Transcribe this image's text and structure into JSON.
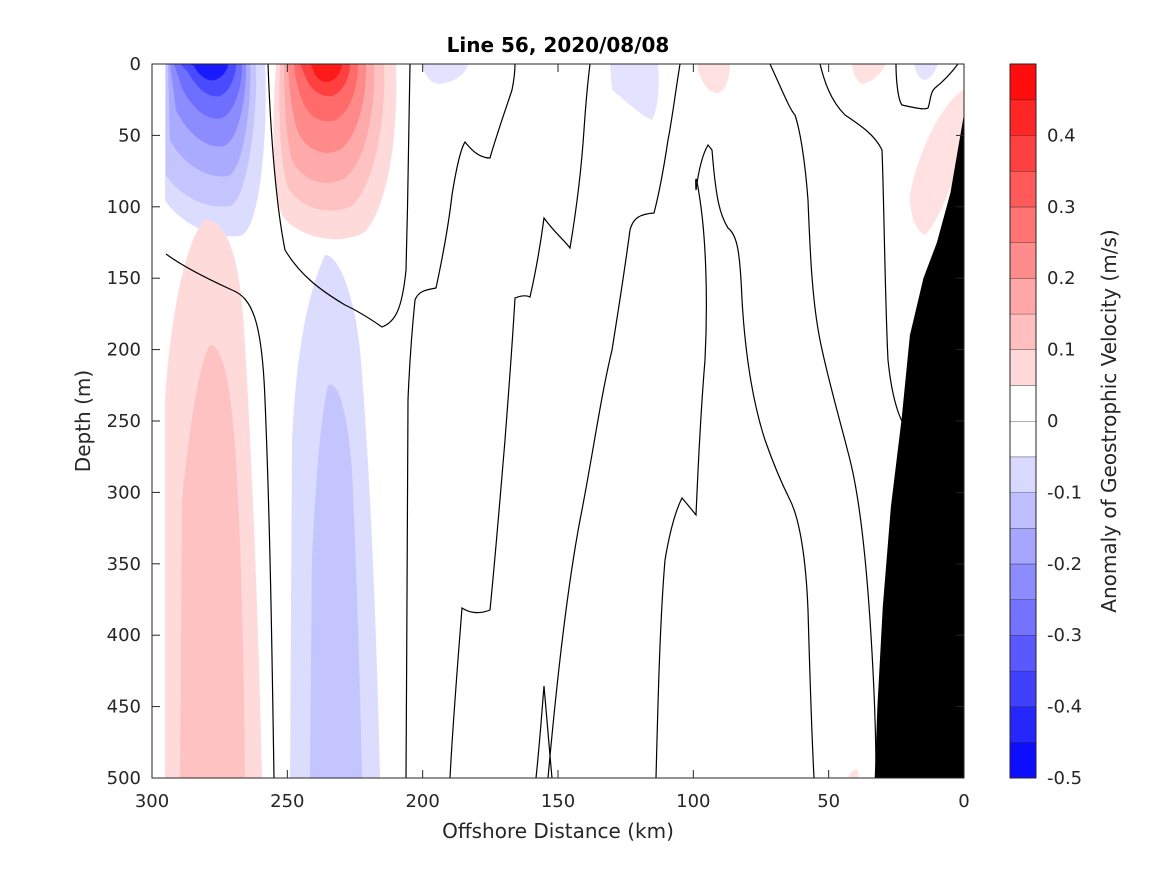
{
  "chart_data": {
    "type": "heatmap",
    "title": "Line 56, 2020/08/08",
    "xlabel": "Offshore Distance (km)",
    "ylabel": "Depth (m)",
    "xlim": [
      300,
      0
    ],
    "ylim": [
      500,
      0
    ],
    "x_reversed": true,
    "y_reversed": true,
    "x_ticks": [
      300,
      250,
      200,
      150,
      100,
      50,
      0
    ],
    "y_ticks": [
      0,
      50,
      100,
      150,
      200,
      250,
      300,
      350,
      400,
      450,
      500
    ],
    "colorbar": {
      "label": "Anomaly of Geostrophic Velocity (m/s)",
      "range": [
        -0.5,
        0.5
      ],
      "levels": [
        -0.5,
        -0.45,
        -0.4,
        -0.35,
        -0.3,
        -0.25,
        -0.2,
        -0.15,
        -0.1,
        -0.05,
        0,
        0.05,
        0.1,
        0.15,
        0.2,
        0.25,
        0.3,
        0.35,
        0.4,
        0.45,
        0.5
      ],
      "ticks": [
        -0.5,
        -0.4,
        -0.3,
        -0.2,
        -0.1,
        0,
        0.1,
        0.2,
        0.3,
        0.4
      ],
      "tick_labels": [
        "-0.5",
        "-0.4",
        "-0.3",
        "-0.2",
        "-0.1",
        "0",
        "0.1",
        "0.2",
        "0.3",
        "0.4"
      ],
      "negative_color": "#0000ff",
      "positive_color": "#ff0000",
      "zero_color": "#ffffff"
    },
    "features": [
      {
        "name": "surface jet at 280 km",
        "center_x": 279,
        "center_y": 0,
        "half_width_x": 20,
        "depth_extent": 120,
        "peak": -0.45
      },
      {
        "name": "surface jet at 235 km",
        "center_x": 235,
        "center_y": 0,
        "half_width_x": 22,
        "depth_extent": 120,
        "peak": 0.42
      },
      {
        "name": "deep feature at 278 km",
        "center_x": 278,
        "center_y": 500,
        "half_width_x": 22,
        "top_depth": 220,
        "peak": 0.12
      },
      {
        "name": "deep feature at 235 km",
        "center_x": 235,
        "center_y": 500,
        "half_width_x": 22,
        "top_depth": 235,
        "peak": -0.14
      }
    ],
    "bathymetry": {
      "color": "#000000",
      "x": [
        0,
        5,
        10,
        15,
        20,
        23,
        27,
        30,
        32,
        33,
        0
      ],
      "y": [
        35,
        90,
        125,
        150,
        190,
        248,
        310,
        380,
        450,
        500,
        500
      ]
    },
    "grid": false,
    "legend": "colorbar-right"
  }
}
